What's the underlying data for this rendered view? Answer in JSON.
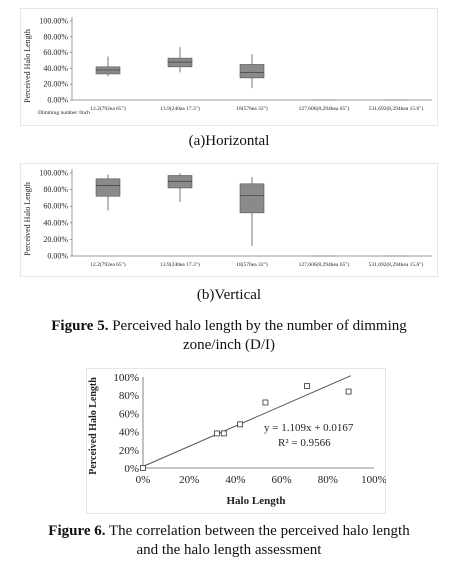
{
  "figure5": {
    "subcaption_a": "(a)Horizontal",
    "subcaption_b": "(b)Vertical",
    "caption_label": "Figure 5.",
    "caption_line1": "Perceived halo length by the number of dimming",
    "caption_line2": "zone/inch (D/I)"
  },
  "figure6": {
    "caption_label": "Figure 6.",
    "caption_line1": "The correlation between the perceived halo length",
    "caption_line2": "and the halo length assessment"
  },
  "chart_data": [
    {
      "type": "box",
      "ylabel": "Perceived Halo Length",
      "xlabel": "Dimming number /Inch",
      "yticks": [
        "100.00%",
        "80.00%",
        "60.00%",
        "40.00%",
        "20.00%",
        "0.00%"
      ],
      "ylim": [
        0,
        100
      ],
      "categories": [
        "12.2(792ea 65\")",
        "13.9(240ea 17.3\")",
        "18(576ea 32\")",
        "127,606(8,294kea 65\")",
        "531,692(8,294kea 15.6\")"
      ],
      "boxes": [
        {
          "min": 30,
          "q1": 33,
          "median": 38,
          "q3": 42,
          "max": 55
        },
        {
          "min": 35,
          "q1": 42,
          "median": 48,
          "q3": 53,
          "max": 67
        },
        {
          "min": 15,
          "q1": 28,
          "median": 35,
          "q3": 45,
          "max": 58
        },
        {
          "min": 0,
          "q1": 0,
          "median": 0,
          "q3": 0,
          "max": 0
        },
        {
          "min": 0,
          "q1": 0,
          "median": 0,
          "q3": 0,
          "max": 0
        }
      ]
    },
    {
      "type": "box",
      "ylabel": "Perceived Halo Length",
      "xlabel": "",
      "yticks": [
        "100.00%",
        "80.00%",
        "60.00%",
        "40.00%",
        "20.00%",
        "0.00%"
      ],
      "ylim": [
        0,
        100
      ],
      "categories": [
        "12.2(792ea 65\")",
        "13.9(240ea 17.3\")",
        "18(576ea 32\")",
        "127,606(8,294kea 65\")",
        "531,692(8,294kea 15.6\")"
      ],
      "boxes": [
        {
          "min": 55,
          "q1": 72,
          "median": 85,
          "q3": 93,
          "max": 98
        },
        {
          "min": 65,
          "q1": 82,
          "median": 90,
          "q3": 97,
          "max": 100
        },
        {
          "min": 12,
          "q1": 52,
          "median": 73,
          "q3": 87,
          "max": 95
        },
        {
          "min": 0,
          "q1": 0,
          "median": 0,
          "q3": 0,
          "max": 0
        },
        {
          "min": 0,
          "q1": 0,
          "median": 0,
          "q3": 0,
          "max": 0
        }
      ]
    },
    {
      "type": "scatter",
      "ylabel": "Perceived Halo Length",
      "xlabel": "Halo Length",
      "xticks": [
        "0%",
        "20%",
        "40%",
        "60%",
        "80%",
        "100%"
      ],
      "yticks": [
        "100%",
        "80%",
        "60%",
        "40%",
        "20%",
        "0%"
      ],
      "xlim": [
        0,
        100
      ],
      "ylim": [
        0,
        100
      ],
      "points": [
        {
          "x": 0,
          "y": 0
        },
        {
          "x": 32,
          "y": 38
        },
        {
          "x": 35,
          "y": 38
        },
        {
          "x": 42,
          "y": 48
        },
        {
          "x": 53,
          "y": 72
        },
        {
          "x": 71,
          "y": 90
        },
        {
          "x": 89,
          "y": 84
        }
      ],
      "trendline": {
        "slope": 1.109,
        "intercept": 0.0167,
        "x_range": [
          0,
          90
        ]
      },
      "equation": "y = 1.109x + 0.0167",
      "r_squared": "R² = 0.9566"
    }
  ]
}
